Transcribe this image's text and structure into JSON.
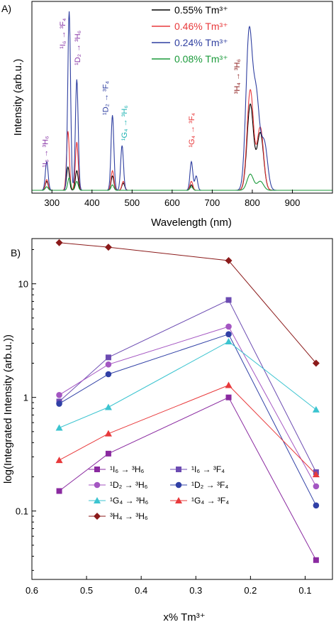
{
  "chart_data": [
    {
      "panel": "A)",
      "type": "line",
      "xlabel": "Wavelength (nm)",
      "ylabel": "Intensity (arb.u.)",
      "xlim": [
        250,
        1000
      ],
      "ylim": [
        0,
        1.0
      ],
      "xticks": [
        300,
        400,
        500,
        600,
        700,
        800,
        900
      ],
      "legend_position": "top-center",
      "series": [
        {
          "name": "0.55% Tm³⁺",
          "color": "#000000",
          "peaks": [
            [
              287,
              0.05
            ],
            [
              340,
              0.13
            ],
            [
              362,
              0.11
            ],
            [
              451,
              0.08
            ],
            [
              478,
              0.04
            ],
            [
              648,
              0.03
            ],
            [
              795,
              0.48
            ],
            [
              820,
              0.32
            ]
          ]
        },
        {
          "name": "0.46% Tm³⁺",
          "color": "#e8393b",
          "peaks": [
            [
              287,
              0.06
            ],
            [
              340,
              0.33
            ],
            [
              362,
              0.27
            ],
            [
              451,
              0.11
            ],
            [
              478,
              0.05
            ],
            [
              648,
              0.05
            ],
            [
              795,
              0.56
            ],
            [
              820,
              0.35
            ]
          ]
        },
        {
          "name": "0.24% Tm³⁺",
          "color": "#2f3fa0",
          "peaks": [
            [
              287,
              0.16
            ],
            [
              343,
              1.0
            ],
            [
              362,
              0.62
            ],
            [
              451,
              0.42
            ],
            [
              475,
              0.25
            ],
            [
              648,
              0.16
            ],
            [
              660,
              0.08
            ],
            [
              792,
              0.87
            ],
            [
              810,
              0.5
            ],
            [
              830,
              0.26
            ]
          ]
        },
        {
          "name": "0.08% Tm³⁺",
          "color": "#1a9a3a",
          "peaks": [
            [
              287,
              0.02
            ],
            [
              343,
              0.07
            ],
            [
              362,
              0.05
            ],
            [
              451,
              0.03
            ],
            [
              648,
              0.02
            ],
            [
              795,
              0.09
            ],
            [
              820,
              0.05
            ]
          ]
        }
      ],
      "annotations": [
        {
          "text": "¹I₆ → ³H₆",
          "color": "#8a3aa8",
          "x": 290,
          "y": 0.22
        },
        {
          "text": "¹I₆ → ³F₄",
          "color": "#8a3aa8",
          "x": 333,
          "y": 0.88
        },
        {
          "text": "¹D₂ → ³H₆",
          "color": "#8a3aa8",
          "x": 370,
          "y": 0.8
        },
        {
          "text": "¹D₂ → ³F₄",
          "color": "#2f3fa0",
          "x": 440,
          "y": 0.52
        },
        {
          "text": "¹G₄ → ³H₆",
          "color": "#1fb3b3",
          "x": 487,
          "y": 0.38
        },
        {
          "text": "¹G₄ → ³F₄",
          "color": "#e8393b",
          "x": 655,
          "y": 0.34
        },
        {
          "text": "³H₄ → ³H₆",
          "color": "#8b1a1a",
          "x": 768,
          "y": 0.64
        }
      ]
    },
    {
      "panel": "B)",
      "type": "line",
      "xlabel": "x% Tm³⁺",
      "ylabel": "log(Integrated Intensity (arb.u.))",
      "xscale": "linear-reversed",
      "yscale": "log",
      "xlim": [
        0.6,
        0.05
      ],
      "ylim": [
        0.025,
        25
      ],
      "xticks": [
        "0.6",
        "0.5",
        "0.4",
        "0.3",
        "0.2",
        "0.1"
      ],
      "yticks": [
        "0.1",
        "1",
        "10"
      ],
      "x": [
        0.55,
        0.46,
        0.24,
        0.08
      ],
      "legend_position": "lower-left",
      "series": [
        {
          "name": "¹I₆ → ³H₆",
          "color": "#8a2aa0",
          "marker": "square",
          "values": [
            0.15,
            0.32,
            1.0,
            0.037
          ]
        },
        {
          "name": "¹I₆ → ³F₄",
          "color": "#6c4bb2",
          "marker": "square",
          "values": [
            0.92,
            2.25,
            7.2,
            0.22
          ]
        },
        {
          "name": "¹D₂ → ³H₆",
          "color": "#a456c2",
          "marker": "circle",
          "values": [
            1.05,
            1.95,
            4.2,
            0.165
          ]
        },
        {
          "name": "¹D₂ → ³F₄",
          "color": "#3040a6",
          "marker": "circle",
          "values": [
            0.88,
            1.6,
            3.6,
            0.112
          ]
        },
        {
          "name": "¹G₄ → ³H₆",
          "color": "#3cc4d0",
          "marker": "triangle",
          "values": [
            0.54,
            0.82,
            3.1,
            0.78
          ]
        },
        {
          "name": "¹G₄ → ³F₄",
          "color": "#e8393b",
          "marker": "triangle",
          "values": [
            0.28,
            0.48,
            1.28,
            0.21
          ]
        },
        {
          "name": "³H₄ → ³H₆",
          "color": "#8b1a1a",
          "marker": "diamond",
          "values": [
            23.0,
            21.0,
            16.0,
            2.0
          ]
        }
      ]
    }
  ]
}
